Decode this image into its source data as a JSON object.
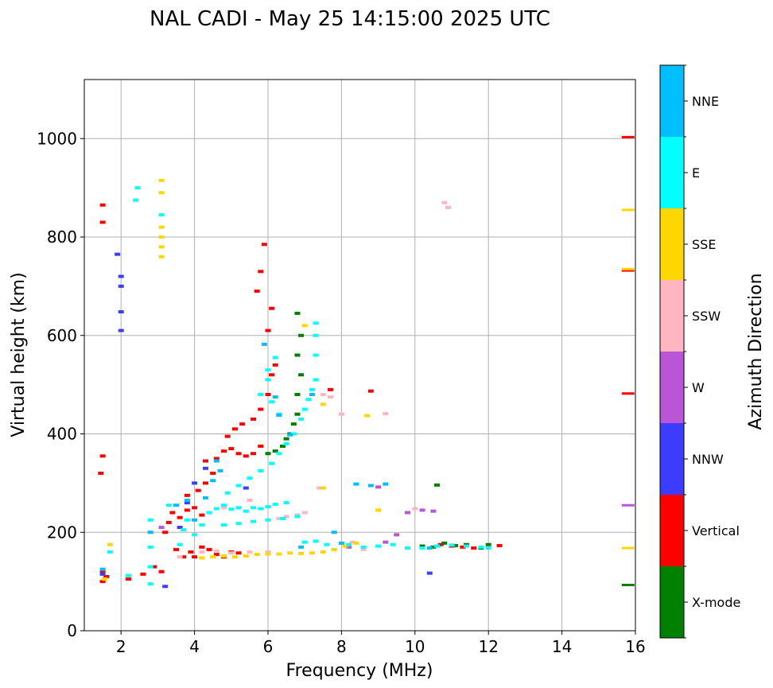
{
  "chart_data": {
    "type": "scatter",
    "title": "NAL CADI - May 25 14:15:00 2025 UTC",
    "xlabel": "Frequency (MHz)",
    "ylabel": "Virtual height (km)",
    "xlim": [
      1,
      16
    ],
    "ylim": [
      0,
      1120
    ],
    "xticks": [
      2,
      4,
      6,
      8,
      10,
      12,
      14,
      16
    ],
    "yticks": [
      0,
      200,
      400,
      600,
      800,
      1000
    ],
    "grid": true,
    "colorbar": {
      "label": "Azimuth Direction",
      "categories": [
        {
          "name": "X-mode",
          "color": "#008000"
        },
        {
          "name": "Vertical",
          "color": "#ff0000"
        },
        {
          "name": "NNW",
          "color": "#3c3cff"
        },
        {
          "name": "W",
          "color": "#b955d6"
        },
        {
          "name": "SSW",
          "color": "#ffb6c1"
        },
        {
          "name": "SSE",
          "color": "#ffd700"
        },
        {
          "name": "E",
          "color": "#00ffff"
        },
        {
          "name": "NNE",
          "color": "#00bfff"
        }
      ]
    },
    "series": [
      {
        "name": "Vertical",
        "points": [
          [
            1.5,
            100
          ],
          [
            1.6,
            110
          ],
          [
            1.5,
            120
          ],
          [
            1.45,
            320
          ],
          [
            1.5,
            355
          ],
          [
            1.5,
            865
          ],
          [
            1.5,
            830
          ],
          [
            2.2,
            105
          ],
          [
            2.6,
            115
          ],
          [
            2.9,
            130
          ],
          [
            3.1,
            120
          ],
          [
            3.2,
            200
          ],
          [
            3.3,
            220
          ],
          [
            3.5,
            165
          ],
          [
            3.7,
            150
          ],
          [
            3.9,
            160
          ],
          [
            4.0,
            150
          ],
          [
            4.2,
            170
          ],
          [
            4.4,
            165
          ],
          [
            4.6,
            155
          ],
          [
            4.8,
            150
          ],
          [
            5.0,
            160
          ],
          [
            5.2,
            158
          ],
          [
            3.4,
            240
          ],
          [
            3.6,
            230
          ],
          [
            3.8,
            245
          ],
          [
            4.0,
            250
          ],
          [
            4.2,
            235
          ],
          [
            3.8,
            275
          ],
          [
            4.1,
            285
          ],
          [
            4.3,
            300
          ],
          [
            4.5,
            320
          ],
          [
            4.3,
            345
          ],
          [
            4.6,
            350
          ],
          [
            4.8,
            365
          ],
          [
            5.0,
            370
          ],
          [
            5.2,
            360
          ],
          [
            5.4,
            355
          ],
          [
            5.6,
            360
          ],
          [
            5.8,
            375
          ],
          [
            4.9,
            395
          ],
          [
            5.1,
            410
          ],
          [
            5.3,
            420
          ],
          [
            5.6,
            430
          ],
          [
            5.8,
            450
          ],
          [
            6.0,
            480
          ],
          [
            6.1,
            520
          ],
          [
            6.2,
            540
          ],
          [
            6.0,
            610
          ],
          [
            6.1,
            655
          ],
          [
            5.7,
            690
          ],
          [
            5.8,
            730
          ],
          [
            5.9,
            785
          ],
          [
            7.7,
            490
          ],
          [
            8.8,
            487
          ],
          [
            10.7,
            175
          ],
          [
            11.0,
            172
          ],
          [
            11.3,
            170
          ],
          [
            11.6,
            168
          ],
          [
            12.3,
            173
          ],
          [
            15.8,
            1003
          ],
          [
            15.8,
            732
          ],
          [
            15.8,
            482
          ]
        ]
      },
      {
        "name": "X-mode",
        "points": [
          [
            6.0,
            360
          ],
          [
            6.2,
            365
          ],
          [
            6.4,
            375
          ],
          [
            6.5,
            390
          ],
          [
            6.6,
            400
          ],
          [
            6.7,
            420
          ],
          [
            6.8,
            440
          ],
          [
            6.8,
            480
          ],
          [
            6.9,
            520
          ],
          [
            6.8,
            560
          ],
          [
            6.9,
            600
          ],
          [
            6.8,
            645
          ],
          [
            10.2,
            172
          ],
          [
            10.5,
            170
          ],
          [
            10.8,
            178
          ],
          [
            11.1,
            173
          ],
          [
            11.4,
            175
          ],
          [
            11.8,
            168
          ],
          [
            12.0,
            175
          ],
          [
            10.6,
            296
          ],
          [
            15.8,
            93
          ]
        ]
      },
      {
        "name": "NNW",
        "points": [
          [
            1.5,
            115
          ],
          [
            1.9,
            765
          ],
          [
            2.0,
            720
          ],
          [
            2.0,
            700
          ],
          [
            2.0,
            648
          ],
          [
            2.0,
            610
          ],
          [
            3.6,
            210
          ],
          [
            3.8,
            260
          ],
          [
            4.0,
            300
          ],
          [
            4.3,
            330
          ],
          [
            5.4,
            290
          ],
          [
            10.4,
            117
          ],
          [
            3.2,
            90
          ]
        ]
      },
      {
        "name": "W",
        "points": [
          [
            9.2,
            180
          ],
          [
            9.5,
            195
          ],
          [
            9.8,
            240
          ],
          [
            10.2,
            245
          ],
          [
            10.5,
            243
          ],
          [
            15.8,
            255
          ],
          [
            8.2,
            170
          ],
          [
            9.0,
            292
          ],
          [
            3.1,
            210
          ]
        ]
      },
      {
        "name": "SSW",
        "points": [
          [
            3.6,
            150
          ],
          [
            4.2,
            160
          ],
          [
            4.6,
            162
          ],
          [
            5.0,
            158
          ],
          [
            5.5,
            160
          ],
          [
            6.0,
            160
          ],
          [
            6.3,
            228
          ],
          [
            6.5,
            232
          ],
          [
            6.8,
            235
          ],
          [
            7.0,
            240
          ],
          [
            7.5,
            480
          ],
          [
            7.7,
            475
          ],
          [
            8.0,
            440
          ],
          [
            8.3,
            180
          ],
          [
            8.6,
            165
          ],
          [
            9.2,
            441
          ],
          [
            10.8,
            870
          ],
          [
            10.9,
            860
          ],
          [
            10.0,
            248
          ],
          [
            7.4,
            290
          ],
          [
            4.8,
            250
          ],
          [
            5.5,
            265
          ]
        ]
      },
      {
        "name": "SSE",
        "points": [
          [
            1.55,
            105
          ],
          [
            1.7,
            175
          ],
          [
            2.8,
            200
          ],
          [
            3.1,
            915
          ],
          [
            3.1,
            890
          ],
          [
            3.1,
            845
          ],
          [
            3.1,
            820
          ],
          [
            3.1,
            800
          ],
          [
            3.1,
            780
          ],
          [
            3.1,
            760
          ],
          [
            4.2,
            148
          ],
          [
            4.5,
            150
          ],
          [
            4.8,
            152
          ],
          [
            5.1,
            150
          ],
          [
            5.4,
            152
          ],
          [
            5.7,
            155
          ],
          [
            6.0,
            156
          ],
          [
            6.3,
            156
          ],
          [
            6.6,
            158
          ],
          [
            6.9,
            157
          ],
          [
            7.2,
            158
          ],
          [
            7.5,
            160
          ],
          [
            7.8,
            165
          ],
          [
            8.1,
            172
          ],
          [
            8.4,
            178
          ],
          [
            8.7,
            437
          ],
          [
            9.0,
            245
          ],
          [
            7.0,
            620
          ],
          [
            7.5,
            460
          ],
          [
            15.8,
            855
          ],
          [
            15.8,
            735
          ],
          [
            15.8,
            168
          ],
          [
            7.5,
            290
          ]
        ]
      },
      {
        "name": "E",
        "points": [
          [
            2.45,
            900
          ],
          [
            2.4,
            875
          ],
          [
            1.7,
            160
          ],
          [
            2.2,
            112
          ],
          [
            2.8,
            225
          ],
          [
            2.8,
            170
          ],
          [
            2.8,
            130
          ],
          [
            2.8,
            95
          ],
          [
            3.1,
            845
          ],
          [
            3.3,
            255
          ],
          [
            3.6,
            175
          ],
          [
            3.7,
            205
          ],
          [
            3.8,
            225
          ],
          [
            4.0,
            195
          ],
          [
            4.2,
            215
          ],
          [
            4.4,
            240
          ],
          [
            4.6,
            248
          ],
          [
            4.8,
            255
          ],
          [
            5.0,
            247
          ],
          [
            5.2,
            250
          ],
          [
            5.4,
            243
          ],
          [
            5.6,
            250
          ],
          [
            5.8,
            248
          ],
          [
            6.0,
            252
          ],
          [
            6.2,
            257
          ],
          [
            6.5,
            260
          ],
          [
            4.8,
            215
          ],
          [
            5.2,
            218
          ],
          [
            5.6,
            222
          ],
          [
            6.0,
            225
          ],
          [
            6.4,
            228
          ],
          [
            6.8,
            232
          ],
          [
            4.9,
            280
          ],
          [
            5.2,
            295
          ],
          [
            5.5,
            310
          ],
          [
            5.8,
            325
          ],
          [
            6.1,
            340
          ],
          [
            6.3,
            360
          ],
          [
            6.5,
            380
          ],
          [
            6.7,
            400
          ],
          [
            6.9,
            430
          ],
          [
            7.0,
            450
          ],
          [
            7.1,
            470
          ],
          [
            7.2,
            490
          ],
          [
            7.3,
            510
          ],
          [
            7.3,
            560
          ],
          [
            7.3,
            600
          ],
          [
            7.3,
            625
          ],
          [
            6.2,
            555
          ],
          [
            6.0,
            510
          ],
          [
            6.1,
            465
          ],
          [
            6.3,
            440
          ],
          [
            7.0,
            180
          ],
          [
            7.3,
            182
          ],
          [
            7.6,
            175
          ],
          [
            8.2,
            175
          ],
          [
            8.6,
            170
          ],
          [
            9.0,
            172
          ],
          [
            9.4,
            175
          ],
          [
            9.8,
            168
          ],
          [
            10.2,
            168
          ],
          [
            10.6,
            172
          ],
          [
            11.0,
            174
          ],
          [
            11.4,
            172
          ],
          [
            11.8,
            170
          ],
          [
            12.0,
            168
          ],
          [
            6.0,
            530
          ],
          [
            5.8,
            480
          ]
        ]
      },
      {
        "name": "NNE",
        "points": [
          [
            1.5,
            125
          ],
          [
            2.8,
            200
          ],
          [
            3.5,
            255
          ],
          [
            3.8,
            265
          ],
          [
            4.0,
            225
          ],
          [
            4.3,
            270
          ],
          [
            4.5,
            305
          ],
          [
            4.7,
            325
          ],
          [
            4.6,
            345
          ],
          [
            5.9,
            582
          ],
          [
            6.2,
            475
          ],
          [
            6.3,
            438
          ],
          [
            6.6,
            398
          ],
          [
            7.2,
            480
          ],
          [
            8.0,
            178
          ],
          [
            8.4,
            298
          ],
          [
            8.8,
            295
          ],
          [
            9.2,
            298
          ],
          [
            7.8,
            200
          ],
          [
            6.9,
            170
          ],
          [
            10.4,
            168
          ]
        ]
      }
    ]
  }
}
